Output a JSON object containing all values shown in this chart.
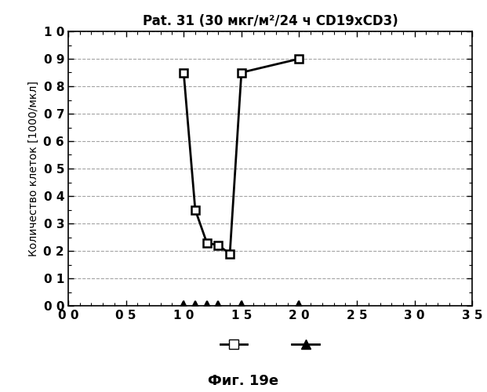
{
  "title": "Pat. 31 (30 мкг/м²/24 ч CD19xCD3)",
  "xlabel_bottom": "Фиг. 19е",
  "ylabel": "Количество клеток [1000/мкл]",
  "xlim": [
    0,
    35
  ],
  "ylim": [
    0,
    1.0
  ],
  "xticks": [
    0,
    5,
    10,
    15,
    20,
    25,
    30,
    35
  ],
  "xtick_labels": [
    "0 0",
    "0 5",
    "1 0",
    "1 5",
    "2 0",
    "2 5",
    "3 0",
    "3 5"
  ],
  "yticks": [
    0.0,
    0.1,
    0.2,
    0.3,
    0.4,
    0.5,
    0.6,
    0.7,
    0.8,
    0.9,
    1.0
  ],
  "ytick_labels": [
    "0 0",
    "0 1",
    "0 2",
    "0 3",
    "0 4",
    "0 5",
    "0 6",
    "0 7",
    "0 8",
    "0 9",
    "1 0"
  ],
  "square_x": [
    10,
    11,
    12,
    13,
    14,
    15,
    20
  ],
  "square_y": [
    0.85,
    0.35,
    0.23,
    0.22,
    0.19,
    0.85,
    0.9
  ],
  "triangle_x": [
    10,
    11,
    12,
    13,
    15,
    20
  ],
  "triangle_y": [
    0.0,
    0.0,
    0.0,
    0.0,
    0.0,
    0.0
  ],
  "line_color": "#000000",
  "background_color": "#ffffff",
  "grid_color": "#999999",
  "tick_fontsize": 11,
  "label_fontsize": 10,
  "title_fontsize": 12
}
